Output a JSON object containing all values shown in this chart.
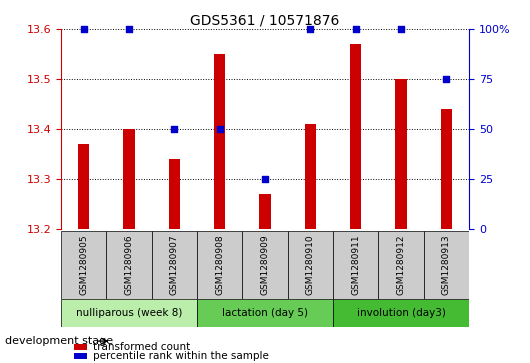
{
  "title": "GDS5361 / 10571876",
  "samples": [
    "GSM1280905",
    "GSM1280906",
    "GSM1280907",
    "GSM1280908",
    "GSM1280909",
    "GSM1280910",
    "GSM1280911",
    "GSM1280912",
    "GSM1280913"
  ],
  "bar_values": [
    13.37,
    13.4,
    13.34,
    13.55,
    13.27,
    13.41,
    13.57,
    13.5,
    13.44
  ],
  "percentile_values": [
    100,
    100,
    50,
    50,
    25,
    100,
    100,
    100,
    75
  ],
  "ymin": 13.2,
  "ymax": 13.6,
  "bar_color": "#cc0000",
  "dot_color": "#0000cc",
  "gridline_values": [
    13.3,
    13.4,
    13.5,
    13.6
  ],
  "left_ticks": [
    13.2,
    13.3,
    13.4,
    13.5,
    13.6
  ],
  "right_axis_ticks": [
    0,
    25,
    50,
    75,
    100
  ],
  "right_axis_labels": [
    "0",
    "25",
    "50",
    "75",
    "100%"
  ],
  "groups": [
    {
      "label": "nulliparous (week 8)",
      "start": 0,
      "end": 3,
      "color": "#bbeeaa"
    },
    {
      "label": "lactation (day 5)",
      "start": 3,
      "end": 6,
      "color": "#66cc55"
    },
    {
      "label": "involution (day3)",
      "start": 6,
      "end": 9,
      "color": "#44bb33"
    }
  ],
  "legend_bar_label": "transformed count",
  "legend_dot_label": "percentile rank within the sample",
  "dev_stage_label": "development stage",
  "tick_color_left": "#cc0000",
  "tick_color_right": "#0000cc",
  "sample_box_color": "#cccccc",
  "bar_width": 0.25
}
